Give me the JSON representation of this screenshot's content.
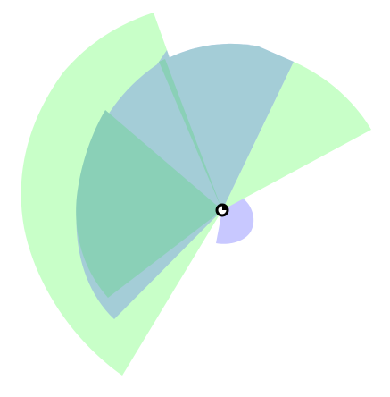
{
  "colors": {
    "background": "#ffffff",
    "blue_sector": "#c8c8ff",
    "green_sector": "#c8ffc8",
    "overlap_shade": "#a4cdd7",
    "deep_overlap": "#8ad0b7",
    "origin_marker_fill": "#000000",
    "origin_marker_ring": "#ffffff"
  },
  "sectors": [
    {
      "kind": "blue",
      "color": "#c8c8ff",
      "layer": "base",
      "start_deg": -20,
      "end_deg": 185,
      "radius": "medium"
    },
    {
      "kind": "green",
      "color": "#c8ffc8",
      "layer": "top",
      "start_deg": -92,
      "end_deg": 75,
      "radius": "large"
    },
    {
      "kind": "green",
      "color": "#c8ffc8",
      "layer": "top",
      "start_deg": 40,
      "end_deg": 150,
      "radius": "large"
    },
    {
      "kind": "green",
      "color": "#c8ffc8",
      "layer": "top",
      "start_deg": 110,
      "end_deg": 230,
      "radius": "large"
    }
  ],
  "origin_marker": {
    "shape": "circle-with-notch"
  }
}
